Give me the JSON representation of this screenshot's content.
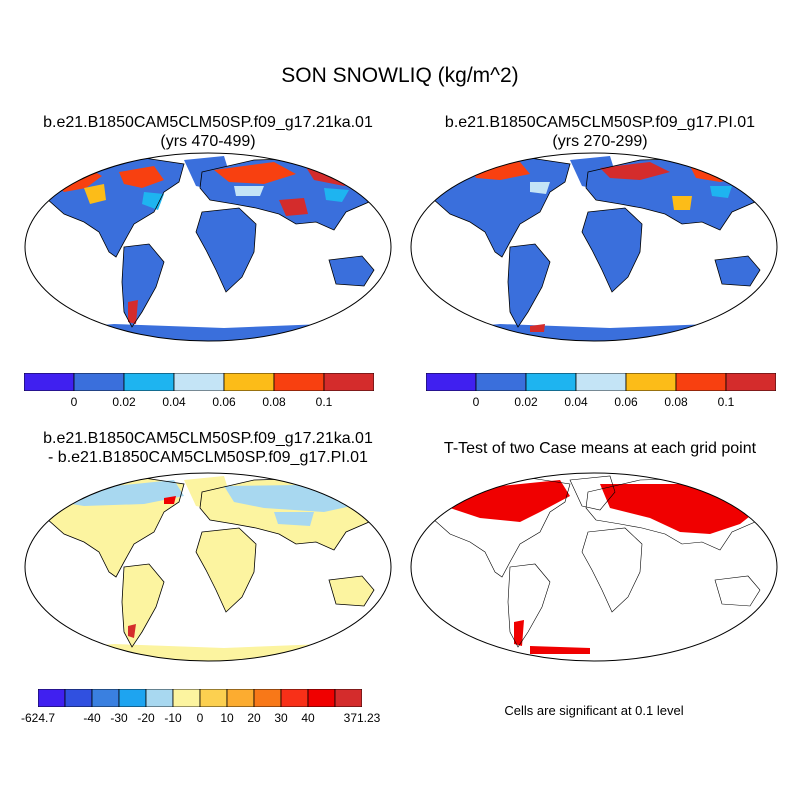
{
  "figure": {
    "title": "SON SNOWLIQ (kg/m^2)"
  },
  "panels": {
    "p1": {
      "title_line1": "b.e21.B1850CAM5CLM50SP.f09_g17.21ka.01",
      "title_line2": "(yrs 470-499)"
    },
    "p2": {
      "title_line1": "b.e21.B1850CAM5CLM50SP.f09_g17.PI.01",
      "title_line2": "(yrs 270-299)"
    },
    "p3": {
      "title_line1": "b.e21.B1850CAM5CLM50SP.f09_g17.21ka.01",
      "title_line2": "- b.e21.B1850CAM5CLM50SP.f09_g17.PI.01"
    },
    "p4": {
      "title_line1": "T-Test of two Case means at each grid point",
      "note": "Cells are significant at 0.1 level"
    }
  },
  "colorbars": {
    "top": {
      "colors": [
        "#4020f0",
        "#3a6fdc",
        "#1eb4f0",
        "#c4e4f6",
        "#fcbc18",
        "#f84010",
        "#d42c2c"
      ],
      "labels": [
        "0",
        "0.02",
        "0.04",
        "0.06",
        "0.08",
        "0.1"
      ]
    },
    "diff": {
      "colors": [
        "#4020f0",
        "#3050e0",
        "#3a80e0",
        "#1ea4f0",
        "#a8d8f0",
        "#fcf4a0",
        "#fcd050",
        "#fcac30",
        "#f87818",
        "#f83018",
        "#f00000",
        "#d42c2c"
      ],
      "labels": [
        "-624.7",
        "-40",
        "-30",
        "-20",
        "-10",
        "0",
        "10",
        "20",
        "30",
        "40",
        "371.23"
      ]
    }
  },
  "colors": {
    "ocean_bg": "#ffffff",
    "land_base_top": "#3a6fdc",
    "land_base_diff": "#fcf4a0",
    "ttest_sig": "#f00000"
  }
}
